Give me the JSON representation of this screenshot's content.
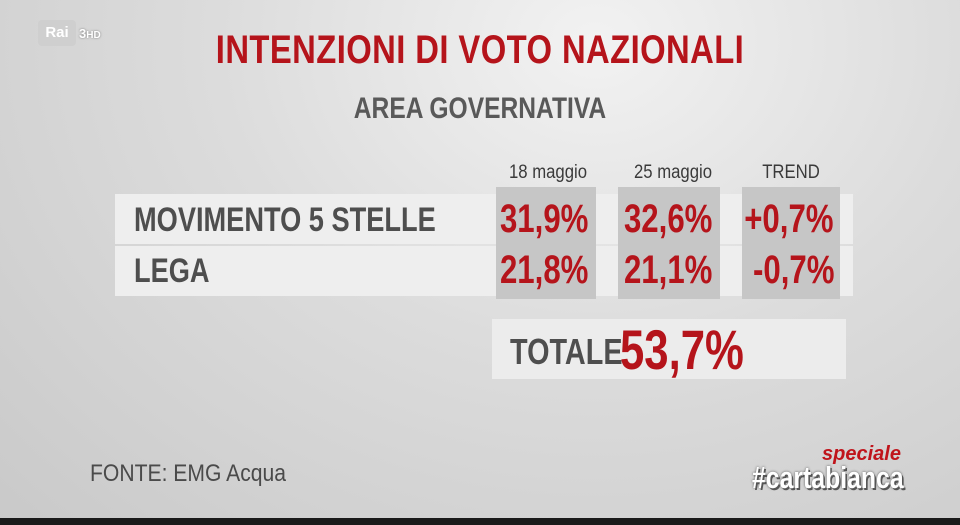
{
  "channel": {
    "logo_text": "Rai",
    "logo_num": "3",
    "logo_hd": "HD"
  },
  "brand": {
    "tag": "speciale",
    "name": "#cartabianca"
  },
  "chart_data": {
    "type": "table",
    "title": "INTENZIONI DI VOTO NAZIONALI",
    "subtitle": "AREA GOVERNATIVA",
    "columns": [
      "18 maggio",
      "25 maggio",
      "TREND"
    ],
    "rows": [
      {
        "label": "MOVIMENTO 5 STELLE",
        "values": [
          "31,9%",
          "32,6%",
          "+0,7%"
        ]
      },
      {
        "label": "LEGA",
        "values": [
          "21,8%",
          "21,1%",
          "-0,7%"
        ]
      }
    ],
    "total": {
      "label": "TOTALE",
      "value": "53,7%"
    },
    "source": "FONTE: EMG Acqua"
  }
}
